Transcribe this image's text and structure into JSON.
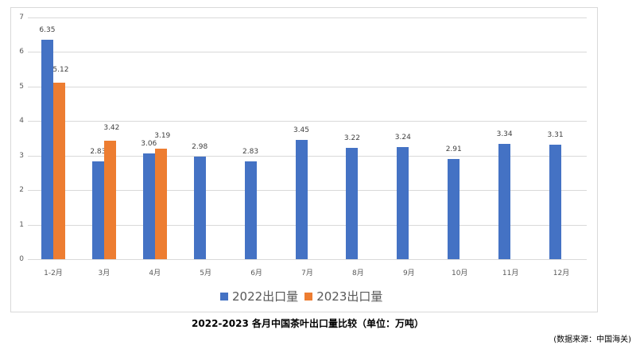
{
  "chart_data": {
    "type": "bar",
    "title": "2022-2023 各月中国茶叶出口量比较（单位：万吨）",
    "source": "(数据来源：中国海关)",
    "xlabel": "",
    "ylabel": "",
    "ylim": [
      0,
      7
    ],
    "yticks": [
      "0",
      "1",
      "2",
      "3",
      "4",
      "5",
      "6",
      "7"
    ],
    "grid": true,
    "legend_position": "bottom",
    "categories": [
      "1-2月",
      "3月",
      "4月",
      "5月",
      "6月",
      "7月",
      "8月",
      "9月",
      "10月",
      "11月",
      "12月"
    ],
    "series": [
      {
        "name": "2022出口量",
        "color": "#4472c4",
        "values": [
          6.35,
          2.83,
          3.06,
          2.98,
          2.83,
          3.45,
          3.22,
          3.24,
          2.91,
          3.34,
          3.31
        ],
        "labels": [
          "6.35",
          "2.83",
          "3.06",
          "2.98",
          "2.83",
          "3.45",
          "3.22",
          "3.24",
          "2.91",
          "3.34",
          "3.31"
        ]
      },
      {
        "name": "2023出口量",
        "color": "#ed7d31",
        "values": [
          5.12,
          3.42,
          3.19,
          null,
          null,
          null,
          null,
          null,
          null,
          null,
          null
        ],
        "labels": [
          "5.12",
          "3.42",
          "3.19",
          "",
          "",
          "",
          "",
          "",
          "",
          "",
          ""
        ]
      }
    ]
  }
}
